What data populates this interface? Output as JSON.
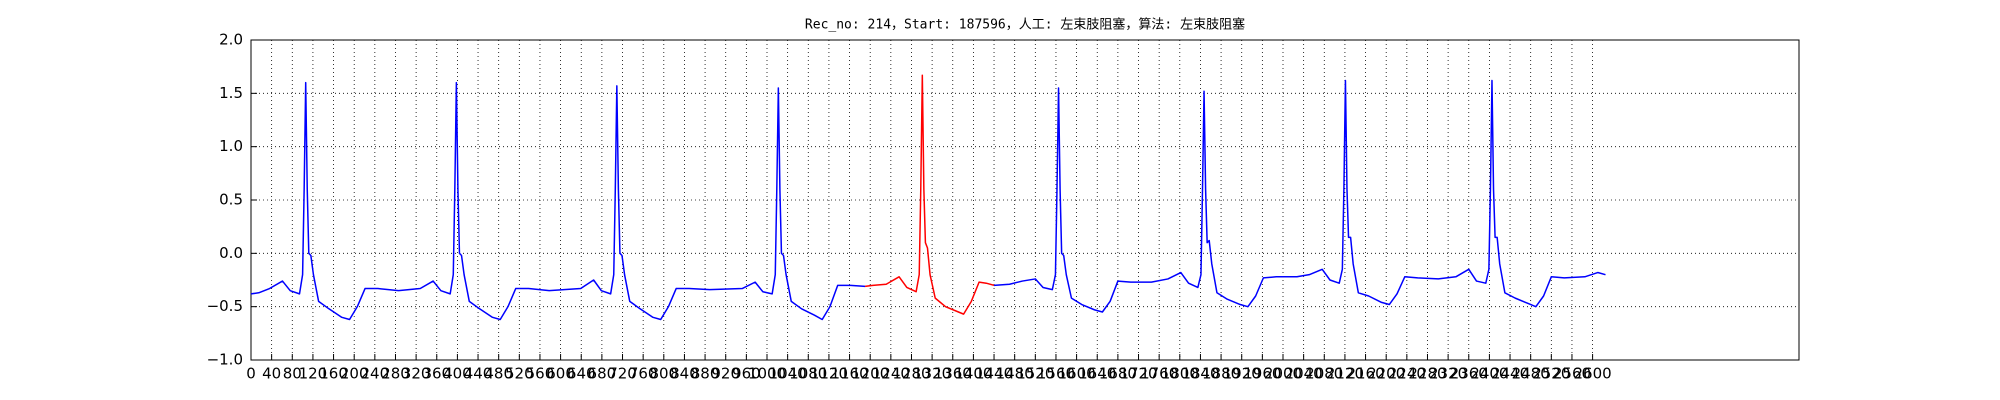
{
  "chart_data": {
    "type": "line",
    "title": "Rec_no: 214，Start: 187596，人工: 左束肢阻塞，算法: 左束肢阻塞",
    "xlim": [
      0,
      3000
    ],
    "xticks": [
      0,
      40,
      80,
      120,
      160,
      200,
      240,
      280,
      320,
      360,
      400,
      440,
      480,
      520,
      560,
      600,
      640,
      680,
      720,
      760,
      800,
      840,
      880,
      920,
      960,
      1000,
      1040,
      1080,
      1120,
      1160,
      1200,
      1240,
      1280,
      1320,
      1360,
      1400,
      1440,
      1480,
      1520,
      1560,
      1600,
      1640,
      1680,
      1720,
      1760,
      1800,
      1840,
      1880,
      1920,
      1960,
      2000,
      2040,
      2080,
      2120,
      2160,
      2200,
      2240,
      2280,
      2320,
      2360,
      2400,
      2440,
      2480,
      2520,
      2560,
      2600
    ],
    "ylim": [
      -1,
      2
    ],
    "yticks": [
      {
        "value": -1,
        "label": "−1.0"
      },
      {
        "value": -0.5,
        "label": "−0.5"
      },
      {
        "value": 0,
        "label": "0.0"
      },
      {
        "value": 0.5,
        "label": "0.5"
      },
      {
        "value": 1,
        "label": "1.0"
      },
      {
        "value": 1.5,
        "label": "1.5"
      },
      {
        "value": 2,
        "label": "2.0"
      }
    ],
    "grid": true,
    "series": [
      {
        "color": "#0000ff",
        "x": [
          0,
          15,
          36,
          61,
          76,
          94,
          100,
          103,
          106,
          109,
          112,
          116,
          121,
          131,
          151,
          176,
          191,
          206,
          221,
          246,
          286,
          328,
          353,
          368,
          386,
          392,
          395,
          398,
          401,
          404,
          408,
          413,
          423,
          443,
          468,
          483,
          498,
          513,
          538,
          578,
          639,
          664,
          679,
          697,
          703,
          706,
          709,
          712,
          715,
          719,
          724,
          734,
          754,
          779,
          794,
          809,
          824,
          849,
          889,
          952,
          977,
          992,
          1010,
          1016,
          1019,
          1022,
          1025,
          1028,
          1032,
          1037,
          1047,
          1067,
          1092,
          1107,
          1122,
          1137,
          1162,
          1190,
          1300,
          1440,
          1470,
          1495,
          1520,
          1535,
          1553,
          1559,
          1562,
          1565,
          1568,
          1571,
          1575,
          1580,
          1590,
          1610,
          1635,
          1650,
          1665,
          1680,
          1705,
          1745,
          1777,
          1802,
          1817,
          1835,
          1841,
          1844,
          1847,
          1850,
          1853,
          1857,
          1862,
          1872,
          1892,
          1917,
          1932,
          1947,
          1962,
          1987,
          2027,
          2051,
          2076,
          2091,
          2109,
          2115,
          2118,
          2121,
          2124,
          2127,
          2131,
          2136,
          2146,
          2166,
          2191,
          2206,
          2221,
          2236,
          2261,
          2301,
          2335,
          2360,
          2375,
          2393,
          2399,
          2402,
          2405,
          2408,
          2411,
          2415,
          2420,
          2430,
          2450,
          2475,
          2490,
          2505,
          2520,
          2545,
          2585,
          2610,
          2625
        ],
        "values": [
          -0.38,
          -0.37,
          -0.33,
          -0.26,
          -0.35,
          -0.38,
          -0.2,
          0.6,
          1.6,
          0.6,
          0.0,
          -0.02,
          -0.2,
          -0.45,
          -0.52,
          -0.6,
          -0.62,
          -0.5,
          -0.33,
          -0.33,
          -0.35,
          -0.33,
          -0.26,
          -0.35,
          -0.38,
          -0.2,
          0.6,
          1.6,
          0.6,
          0.0,
          -0.02,
          -0.2,
          -0.45,
          -0.52,
          -0.6,
          -0.62,
          -0.5,
          -0.33,
          -0.33,
          -0.35,
          -0.33,
          -0.25,
          -0.35,
          -0.38,
          -0.2,
          0.6,
          1.57,
          0.6,
          0.0,
          -0.02,
          -0.2,
          -0.45,
          -0.52,
          -0.6,
          -0.62,
          -0.5,
          -0.33,
          -0.33,
          -0.34,
          -0.33,
          -0.27,
          -0.36,
          -0.38,
          -0.2,
          0.6,
          1.55,
          0.6,
          0.0,
          -0.02,
          -0.2,
          -0.45,
          -0.52,
          -0.58,
          -0.62,
          -0.5,
          -0.3,
          -0.3,
          -0.31,
          null,
          -0.3,
          -0.29,
          -0.26,
          -0.24,
          -0.32,
          -0.34,
          -0.2,
          0.6,
          1.55,
          0.6,
          0.0,
          -0.02,
          -0.2,
          -0.42,
          -0.48,
          -0.53,
          -0.55,
          -0.45,
          -0.26,
          -0.27,
          -0.27,
          -0.24,
          -0.18,
          -0.28,
          -0.32,
          -0.2,
          0.6,
          1.52,
          0.6,
          0.1,
          0.12,
          -0.1,
          -0.37,
          -0.43,
          -0.48,
          -0.5,
          -0.4,
          -0.23,
          -0.22,
          -0.22,
          -0.2,
          -0.15,
          -0.25,
          -0.28,
          -0.15,
          0.6,
          1.62,
          0.6,
          0.15,
          0.15,
          -0.1,
          -0.37,
          -0.4,
          -0.46,
          -0.48,
          -0.38,
          -0.22,
          -0.23,
          -0.24,
          -0.22,
          -0.15,
          -0.26,
          -0.28,
          -0.15,
          0.6,
          1.62,
          0.6,
          0.15,
          0.15,
          -0.1,
          -0.37,
          -0.42,
          -0.47,
          -0.5,
          -0.4,
          -0.22,
          -0.23,
          -0.22,
          -0.18,
          -0.2
        ]
      },
      {
        "color": "#ff0000",
        "x": [
          1190,
          1205,
          1231,
          1256,
          1271,
          1289,
          1295,
          1298,
          1301,
          1304,
          1307,
          1311,
          1316,
          1326,
          1346,
          1371,
          1381,
          1396,
          1411,
          1425,
          1440
        ],
        "values": [
          -0.31,
          -0.3,
          -0.29,
          -0.22,
          -0.32,
          -0.36,
          -0.2,
          0.6,
          1.67,
          0.6,
          0.1,
          0.05,
          -0.2,
          -0.42,
          -0.5,
          -0.55,
          -0.57,
          -0.45,
          -0.27,
          -0.28,
          -0.3
        ]
      }
    ]
  }
}
